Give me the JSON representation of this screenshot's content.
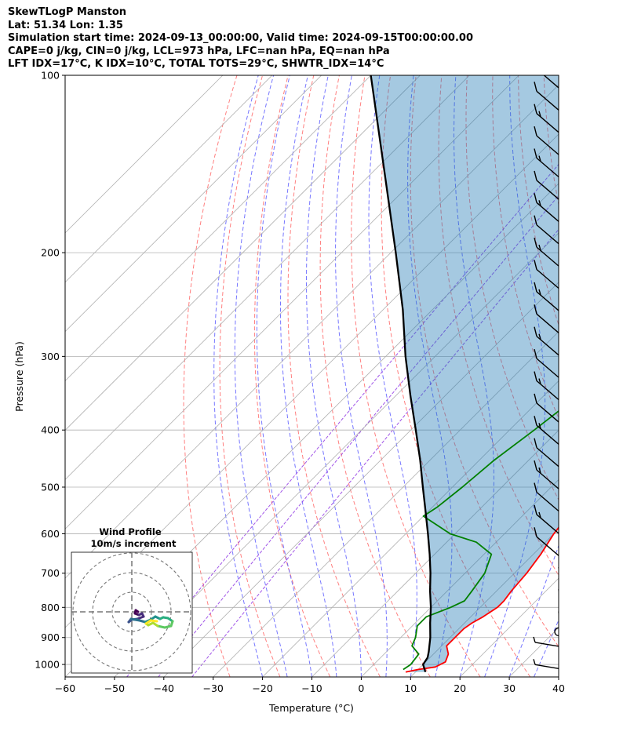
{
  "chart_data": {
    "type": "line",
    "chart_kind": "skew-T log-P diagram",
    "title_lines": [
      "SkewTLogP Manston",
      "Lat: 51.34   Lon: 1.35",
      "Simulation start time: 2024-09-13_00:00:00, Valid time: 2024-09-15T00:00:00.00",
      "CAPE=0 j/kg, CIN=0 j/kg, LCL=973 hPa, LFC=nan hPa, EQ=nan hPa",
      "LFT IDX=17°C, K IDX=10°C, TOTAL TOTS=29°C, SHWTR_IDX=14°C"
    ],
    "xlabel": "Temperature (°C)",
    "ylabel": "Pressure (hPa)",
    "xlim": [
      -60,
      40
    ],
    "ylim": [
      1050,
      100
    ],
    "yscale": "log",
    "x_ticks": [
      -60,
      -50,
      -40,
      -30,
      -20,
      -10,
      0,
      10,
      20,
      30,
      40
    ],
    "x_tick_labels": [
      "−60",
      "−50",
      "−40",
      "−30",
      "−20",
      "−10",
      "0",
      "10",
      "20",
      "30",
      "40"
    ],
    "y_ticks": [
      1000,
      900,
      800,
      700,
      600,
      500,
      400,
      300,
      200,
      100
    ],
    "y_tick_labels": [
      "1000",
      "900",
      "800",
      "700",
      "600",
      "500",
      "400",
      "300",
      "200",
      "100"
    ],
    "grid": true,
    "series": [
      {
        "role": "temperature",
        "color": "#ff0000",
        "points": [
          [
            1030,
            8
          ],
          [
            1020,
            10
          ],
          [
            1010,
            13
          ],
          [
            990,
            14
          ],
          [
            960,
            13
          ],
          [
            930,
            11
          ],
          [
            900,
            11
          ],
          [
            870,
            11
          ],
          [
            850,
            11.5
          ],
          [
            830,
            12.5
          ],
          [
            800,
            13.5
          ],
          [
            780,
            13.5
          ],
          [
            750,
            13
          ],
          [
            700,
            12.5
          ],
          [
            650,
            11.5
          ],
          [
            600,
            10
          ],
          [
            550,
            9
          ],
          [
            500,
            8
          ],
          [
            450,
            6
          ],
          [
            400,
            4
          ],
          [
            350,
            3
          ],
          [
            300,
            1
          ],
          [
            280,
            0
          ],
          [
            260,
            -1
          ],
          [
            250,
            -1
          ],
          [
            230,
            -3
          ],
          [
            210,
            -5
          ],
          [
            200,
            -6
          ],
          [
            190,
            -7
          ],
          [
            180,
            -7
          ],
          [
            170,
            -8
          ],
          [
            160,
            -9
          ],
          [
            150,
            -11
          ],
          [
            140,
            -14
          ],
          [
            130,
            -16
          ],
          [
            120,
            -17
          ],
          [
            115,
            -18
          ],
          [
            110,
            -18
          ],
          [
            105,
            -18
          ],
          [
            100,
            -17
          ]
        ]
      },
      {
        "role": "dewpoint",
        "color": "#008000",
        "points": [
          [
            1020,
            7
          ],
          [
            1000,
            7.5
          ],
          [
            960,
            7
          ],
          [
            930,
            4
          ],
          [
            900,
            3
          ],
          [
            860,
            1
          ],
          [
            830,
            1
          ],
          [
            800,
            4
          ],
          [
            780,
            5.5
          ],
          [
            750,
            5
          ],
          [
            700,
            4
          ],
          [
            650,
            1.5
          ],
          [
            620,
            -4
          ],
          [
            600,
            -11
          ],
          [
            560,
            -20
          ],
          [
            540,
            -19
          ],
          [
            500,
            -18
          ],
          [
            450,
            -17
          ],
          [
            400,
            -15
          ],
          [
            350,
            -13
          ],
          [
            330,
            -13.5
          ],
          [
            300,
            -15
          ],
          [
            280,
            -14
          ],
          [
            270,
            -12
          ],
          [
            250,
            -12
          ],
          [
            240,
            -13
          ],
          [
            230,
            -14
          ],
          [
            210,
            -13
          ],
          [
            200,
            -13
          ],
          [
            185,
            -12
          ],
          [
            175,
            -11
          ],
          [
            165,
            -10
          ],
          [
            155,
            -11
          ],
          [
            140,
            -15
          ],
          [
            130,
            -14
          ],
          [
            120,
            -10
          ],
          [
            110,
            -6
          ],
          [
            100,
            -1
          ]
        ]
      },
      {
        "role": "parcel profile",
        "color": "#000000",
        "points": [
          [
            1030,
            12
          ],
          [
            1000,
            10
          ],
          [
            973,
            9.5
          ],
          [
            950,
            8.5
          ],
          [
            900,
            6
          ],
          [
            850,
            3
          ],
          [
            800,
            0
          ],
          [
            750,
            -3.5
          ],
          [
            700,
            -7
          ],
          [
            650,
            -11
          ],
          [
            600,
            -15.5
          ],
          [
            550,
            -20.5
          ],
          [
            500,
            -26
          ],
          [
            450,
            -32
          ],
          [
            400,
            -39
          ],
          [
            350,
            -47
          ],
          [
            300,
            -56
          ],
          [
            250,
            -66
          ],
          [
            200,
            -79
          ],
          [
            150,
            -96
          ],
          [
            100,
            -120
          ]
        ]
      }
    ],
    "shaded_region": "between parcel profile and temperature",
    "wind_barbs": true,
    "hodograph_inset": {
      "title_lines": [
        "Wind Profile",
        "10m/s increment"
      ]
    }
  }
}
